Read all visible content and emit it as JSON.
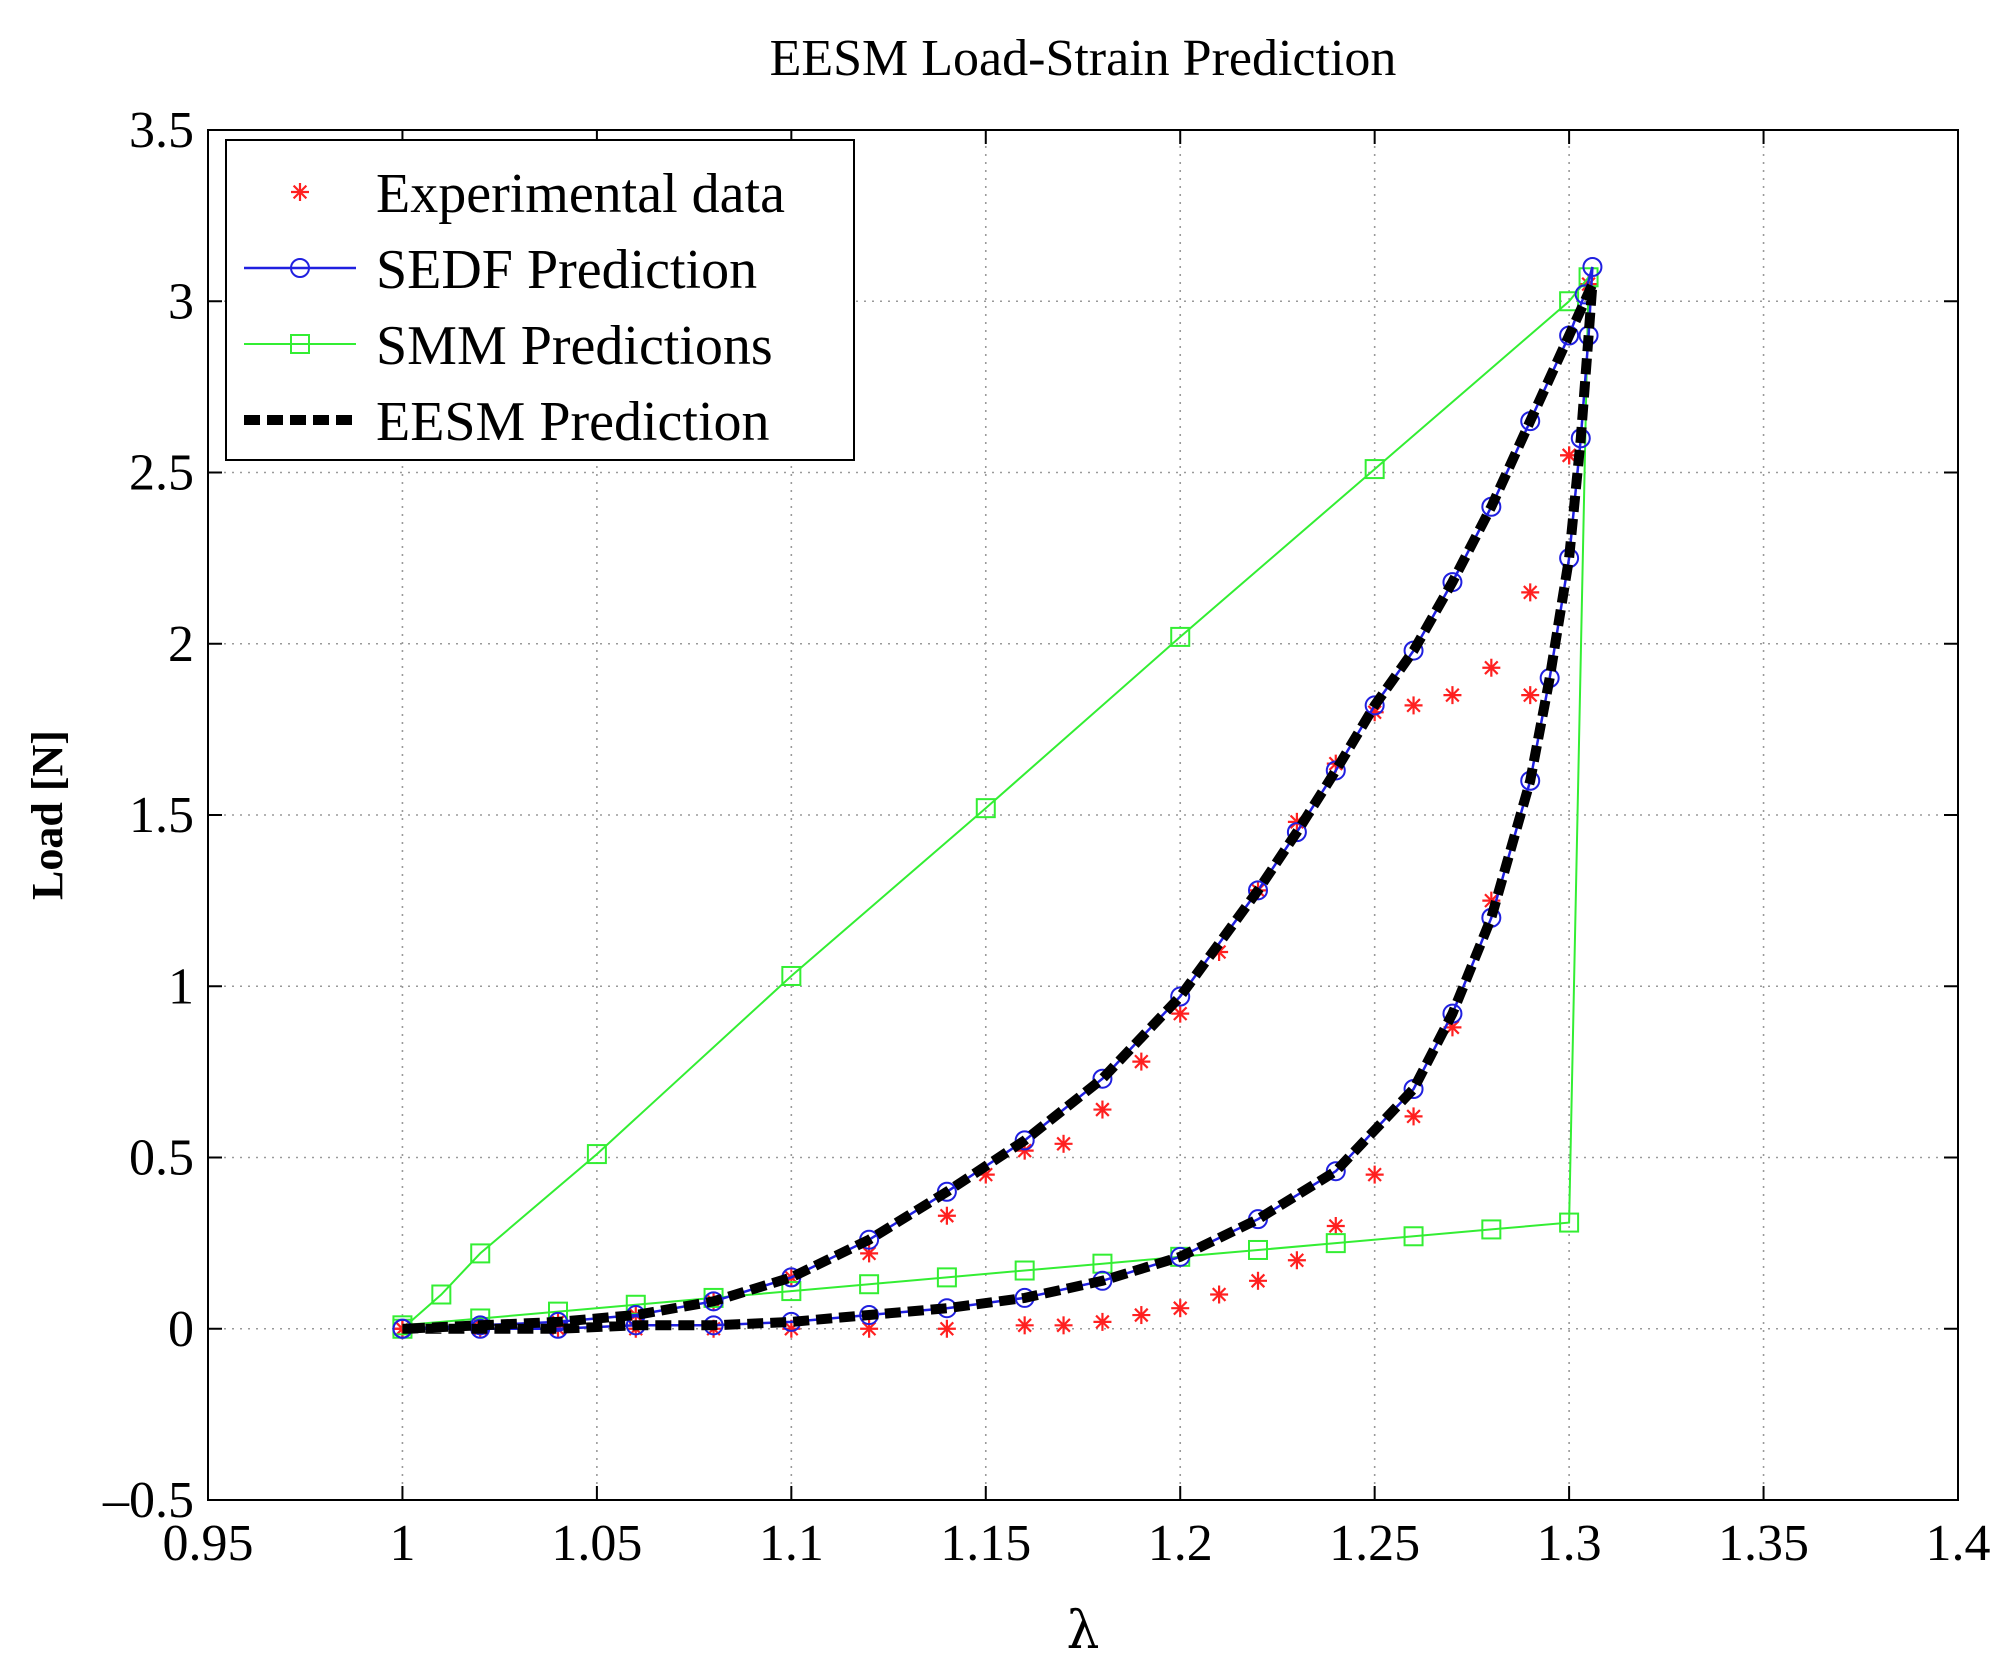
{
  "chart_data": {
    "type": "line",
    "title": "EESM Load-Strain Prediction",
    "xlabel": "λ",
    "ylabel": "Load [N]",
    "xlim": [
      0.95,
      1.4
    ],
    "ylim": [
      -0.5,
      3.5
    ],
    "xticks": [
      "0.95",
      "1",
      "1.05",
      "1.1",
      "1.15",
      "1.2",
      "1.25",
      "1.3",
      "1.35",
      "1.4"
    ],
    "yticks": [
      "-0.5",
      "0",
      "0.5",
      "1",
      "1.5",
      "2",
      "2.5",
      "3",
      "3.5"
    ],
    "grid": true,
    "legend_position": "top-left",
    "series": [
      {
        "name": "Experimental data",
        "color": "#ff2020",
        "marker": "asterisk",
        "line": "none",
        "x": [
          1.0,
          1.02,
          1.04,
          1.06,
          1.08,
          1.1,
          1.12,
          1.14,
          1.16,
          1.17,
          1.18,
          1.19,
          1.2,
          1.21,
          1.22,
          1.23,
          1.24,
          1.25,
          1.26,
          1.27,
          1.28,
          1.29,
          1.3,
          1.305,
          1.3,
          1.29,
          1.28,
          1.27,
          1.26,
          1.25,
          1.24,
          1.23,
          1.22,
          1.21,
          1.2,
          1.19,
          1.18,
          1.17,
          1.16,
          1.15,
          1.14,
          1.12,
          1.1,
          1.08,
          1.06,
          1.04,
          1.02,
          1.0
        ],
        "y": [
          0.0,
          0.0,
          0.0,
          0.0,
          0.0,
          0.0,
          0.0,
          0.0,
          0.01,
          0.01,
          0.02,
          0.04,
          0.06,
          0.1,
          0.14,
          0.2,
          0.3,
          0.45,
          0.62,
          0.88,
          1.25,
          1.85,
          2.55,
          3.05,
          2.55,
          2.15,
          1.93,
          1.85,
          1.82,
          1.8,
          1.65,
          1.48,
          1.28,
          1.1,
          0.92,
          0.78,
          0.64,
          0.54,
          0.52,
          0.45,
          0.33,
          0.22,
          0.15,
          0.08,
          0.04,
          0.02,
          0.01,
          0.0
        ]
      },
      {
        "name": "SEDF Prediction",
        "color": "#2020e0",
        "marker": "circle",
        "line": "solid",
        "x": [
          1.0,
          1.02,
          1.04,
          1.06,
          1.08,
          1.1,
          1.12,
          1.14,
          1.16,
          1.18,
          1.2,
          1.22,
          1.24,
          1.26,
          1.27,
          1.28,
          1.29,
          1.295,
          1.3,
          1.303,
          1.305,
          1.306,
          1.304,
          1.3,
          1.29,
          1.28,
          1.27,
          1.26,
          1.25,
          1.24,
          1.23,
          1.22,
          1.2,
          1.18,
          1.16,
          1.14,
          1.12,
          1.1,
          1.08,
          1.06,
          1.04,
          1.02,
          1.0
        ],
        "y": [
          0.0,
          0.0,
          0.0,
          0.01,
          0.01,
          0.02,
          0.04,
          0.06,
          0.09,
          0.14,
          0.21,
          0.32,
          0.46,
          0.7,
          0.92,
          1.2,
          1.6,
          1.9,
          2.25,
          2.6,
          2.9,
          3.1,
          3.02,
          2.9,
          2.65,
          2.4,
          2.18,
          1.98,
          1.82,
          1.63,
          1.45,
          1.28,
          0.97,
          0.73,
          0.55,
          0.4,
          0.26,
          0.15,
          0.08,
          0.04,
          0.02,
          0.01,
          0.0
        ]
      },
      {
        "name": "SMM Predictions",
        "color": "#33ee33",
        "marker": "square",
        "line": "solid",
        "x": [
          1.0,
          1.01,
          1.02,
          1.05,
          1.1,
          1.15,
          1.2,
          1.25,
          1.3,
          1.305,
          1.3,
          1.28,
          1.26,
          1.24,
          1.22,
          1.2,
          1.18,
          1.16,
          1.14,
          1.12,
          1.1,
          1.08,
          1.06,
          1.04,
          1.02,
          1.0
        ],
        "y": [
          0.0,
          0.1,
          0.22,
          0.51,
          1.03,
          1.52,
          2.02,
          2.51,
          3.0,
          3.07,
          0.31,
          0.29,
          0.27,
          0.25,
          0.23,
          0.21,
          0.19,
          0.17,
          0.15,
          0.13,
          0.11,
          0.09,
          0.07,
          0.05,
          0.03,
          0.01
        ]
      },
      {
        "name": "EESM Prediction",
        "color": "#000000",
        "marker": "none",
        "line": "dashed",
        "x": [
          1.0,
          1.02,
          1.04,
          1.06,
          1.08,
          1.1,
          1.12,
          1.14,
          1.16,
          1.18,
          1.2,
          1.22,
          1.24,
          1.26,
          1.27,
          1.28,
          1.29,
          1.295,
          1.3,
          1.303,
          1.305,
          1.306,
          1.304,
          1.3,
          1.29,
          1.28,
          1.27,
          1.26,
          1.25,
          1.24,
          1.23,
          1.22,
          1.2,
          1.18,
          1.16,
          1.14,
          1.12,
          1.1,
          1.08,
          1.06,
          1.04,
          1.02,
          1.0
        ],
        "y": [
          0.0,
          0.0,
          0.0,
          0.01,
          0.01,
          0.02,
          0.04,
          0.06,
          0.09,
          0.14,
          0.21,
          0.32,
          0.46,
          0.7,
          0.92,
          1.2,
          1.6,
          1.9,
          2.25,
          2.6,
          2.9,
          3.05,
          3.0,
          2.9,
          2.65,
          2.4,
          2.18,
          1.98,
          1.82,
          1.63,
          1.45,
          1.28,
          0.97,
          0.73,
          0.55,
          0.4,
          0.26,
          0.15,
          0.08,
          0.04,
          0.02,
          0.01,
          0.0
        ]
      }
    ]
  }
}
